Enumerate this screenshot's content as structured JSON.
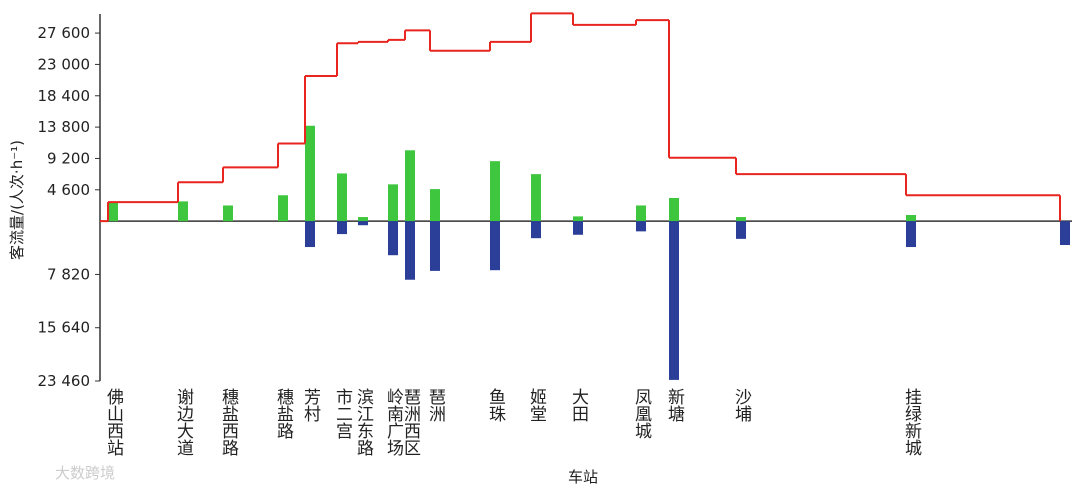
{
  "chart_data": {
    "type": "bar",
    "y_label": "客流量/(人次·h⁻¹)",
    "x_label": "车站",
    "watermark": "大数跨境",
    "categories": [
      "佛山西站",
      "谢边大道",
      "穗盐西路",
      "穗盐路",
      "芳村",
      "市二宫",
      "滨江东路",
      "岭南广场",
      "琶洲西区",
      "琶洲",
      "鱼珠",
      "姬堂",
      "大田",
      "凤凰城",
      "新塘",
      "沙埔",
      "挂绿新城",
      null
    ],
    "series": [
      {
        "color": "#3ec63e",
        "values": [
          2800,
          2900,
          2300,
          3800,
          14000,
          7000,
          600,
          5400,
          10400,
          4700,
          8800,
          6900,
          700,
          2300,
          3400,
          600,
          900,
          0
        ]
      },
      {
        "color": "#2b3f99",
        "values": [
          0,
          0,
          0,
          0,
          -3800,
          -1900,
          -600,
          -5000,
          -8600,
          -7300,
          -7200,
          -2500,
          -2000,
          -1500,
          -23300,
          -2600,
          -3800,
          -3500
        ]
      },
      {
        "color": "#e8251f",
        "values": [
          2800,
          5700,
          7900,
          11400,
          21300,
          26100,
          26300,
          26600,
          28000,
          25000,
          26300,
          30500,
          28800,
          29500,
          9300,
          6900,
          3800,
          null
        ]
      }
    ],
    "ylim": [
      -23460,
      30400
    ],
    "yticks": [
      {
        "value": 27600,
        "label": "27 600"
      },
      {
        "value": 23000,
        "label": "23 000"
      },
      {
        "value": 18400,
        "label": "18 400"
      },
      {
        "value": 13800,
        "label": "13 800"
      },
      {
        "value": 9200,
        "label": "9 200"
      },
      {
        "value": 4600,
        "label": "4 600"
      },
      {
        "value": -7820,
        "label": "7 820"
      },
      {
        "value": -15640,
        "label": "15 640"
      },
      {
        "value": -23460,
        "label": "23 460"
      }
    ]
  }
}
